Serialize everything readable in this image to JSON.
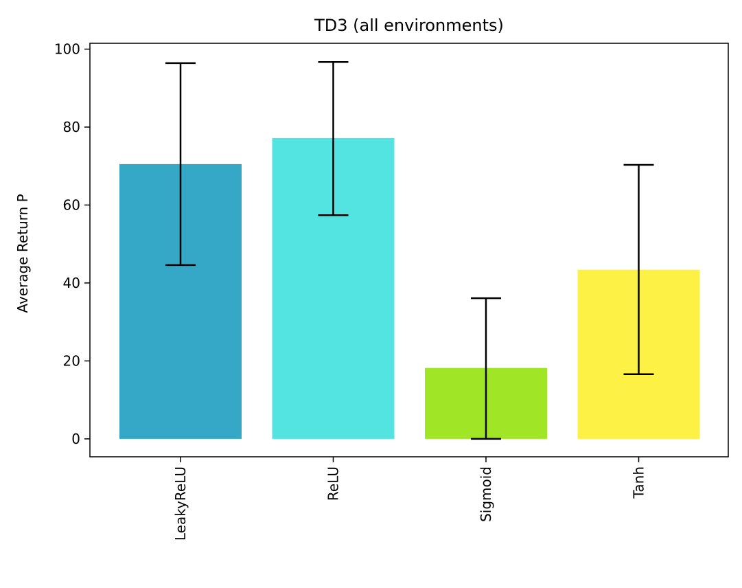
{
  "chart_data": {
    "type": "bar",
    "title": "TD3 (all environments)",
    "xlabel": "",
    "ylabel": "Average Return P",
    "categories": [
      "LeakyReLU",
      "ReLU",
      "Sigmoid",
      "Tanh"
    ],
    "values": [
      70.5,
      77.2,
      18.2,
      43.4
    ],
    "error_low": [
      44.6,
      57.4,
      0.0,
      16.6
    ],
    "error_high": [
      96.4,
      96.7,
      36.1,
      70.3
    ],
    "colors": [
      "#34a8c6",
      "#53e3e0",
      "#a0e526",
      "#fef145"
    ],
    "ylim": [
      -4.6,
      101.5
    ],
    "yticks": [
      0,
      20,
      40,
      60,
      80,
      100
    ],
    "grid": false,
    "legend": "none"
  }
}
